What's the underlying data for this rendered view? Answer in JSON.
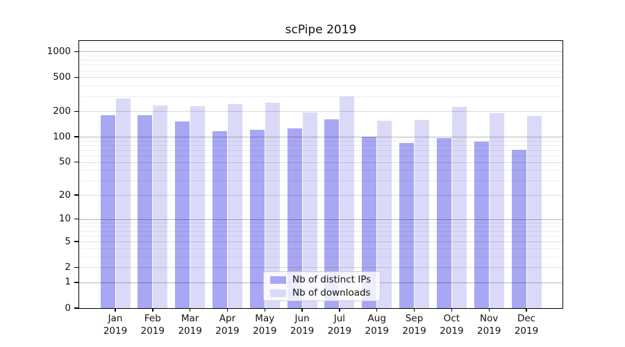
{
  "title": "scPipe 2019",
  "colors": {
    "bar_ips": "#a7a7f3",
    "bar_downloads": "#dadaf8",
    "axis": "#000000",
    "legend_border": "#cccccc"
  },
  "legend": {
    "items": [
      {
        "label": "Nb of distinct IPs",
        "color_key": "bar_ips"
      },
      {
        "label": "Nb of downloads",
        "color_key": "bar_downloads"
      }
    ]
  },
  "y_axis": {
    "tick_labels": [
      "0",
      "1",
      "2",
      "5",
      "10",
      "20",
      "50",
      "100",
      "200",
      "500",
      "1000"
    ]
  },
  "chart_data": {
    "type": "bar",
    "title": "scPipe 2019",
    "categories": [
      "Jan 2019",
      "Feb 2019",
      "Mar 2019",
      "Apr 2019",
      "May 2019",
      "Jun 2019",
      "Jul 2019",
      "Aug 2019",
      "Sep 2019",
      "Oct 2019",
      "Nov 2019",
      "Dec 2019"
    ],
    "series": [
      {
        "name": "Nb of distinct IPs",
        "values": [
          180,
          180,
          152,
          117,
          122,
          125,
          160,
          100,
          85,
          96,
          87,
          70
        ]
      },
      {
        "name": "Nb of downloads",
        "values": [
          281,
          235,
          228,
          242,
          250,
          194,
          297,
          154,
          156,
          226,
          190,
          177
        ]
      }
    ],
    "xlabel": "",
    "ylabel": "",
    "yscale": "log10(value+1), linear floor at 0",
    "yticks": [
      0,
      1,
      2,
      5,
      10,
      20,
      50,
      100,
      200,
      500,
      1000
    ],
    "minor_yticks": [
      3,
      4,
      6,
      7,
      8,
      9,
      30,
      40,
      60,
      70,
      80,
      90,
      300,
      400,
      600,
      700,
      800,
      900
    ],
    "ylim": [
      0,
      1365
    ],
    "grid": "horizontal, major and minor",
    "legend_position": "lower center inside plot"
  }
}
